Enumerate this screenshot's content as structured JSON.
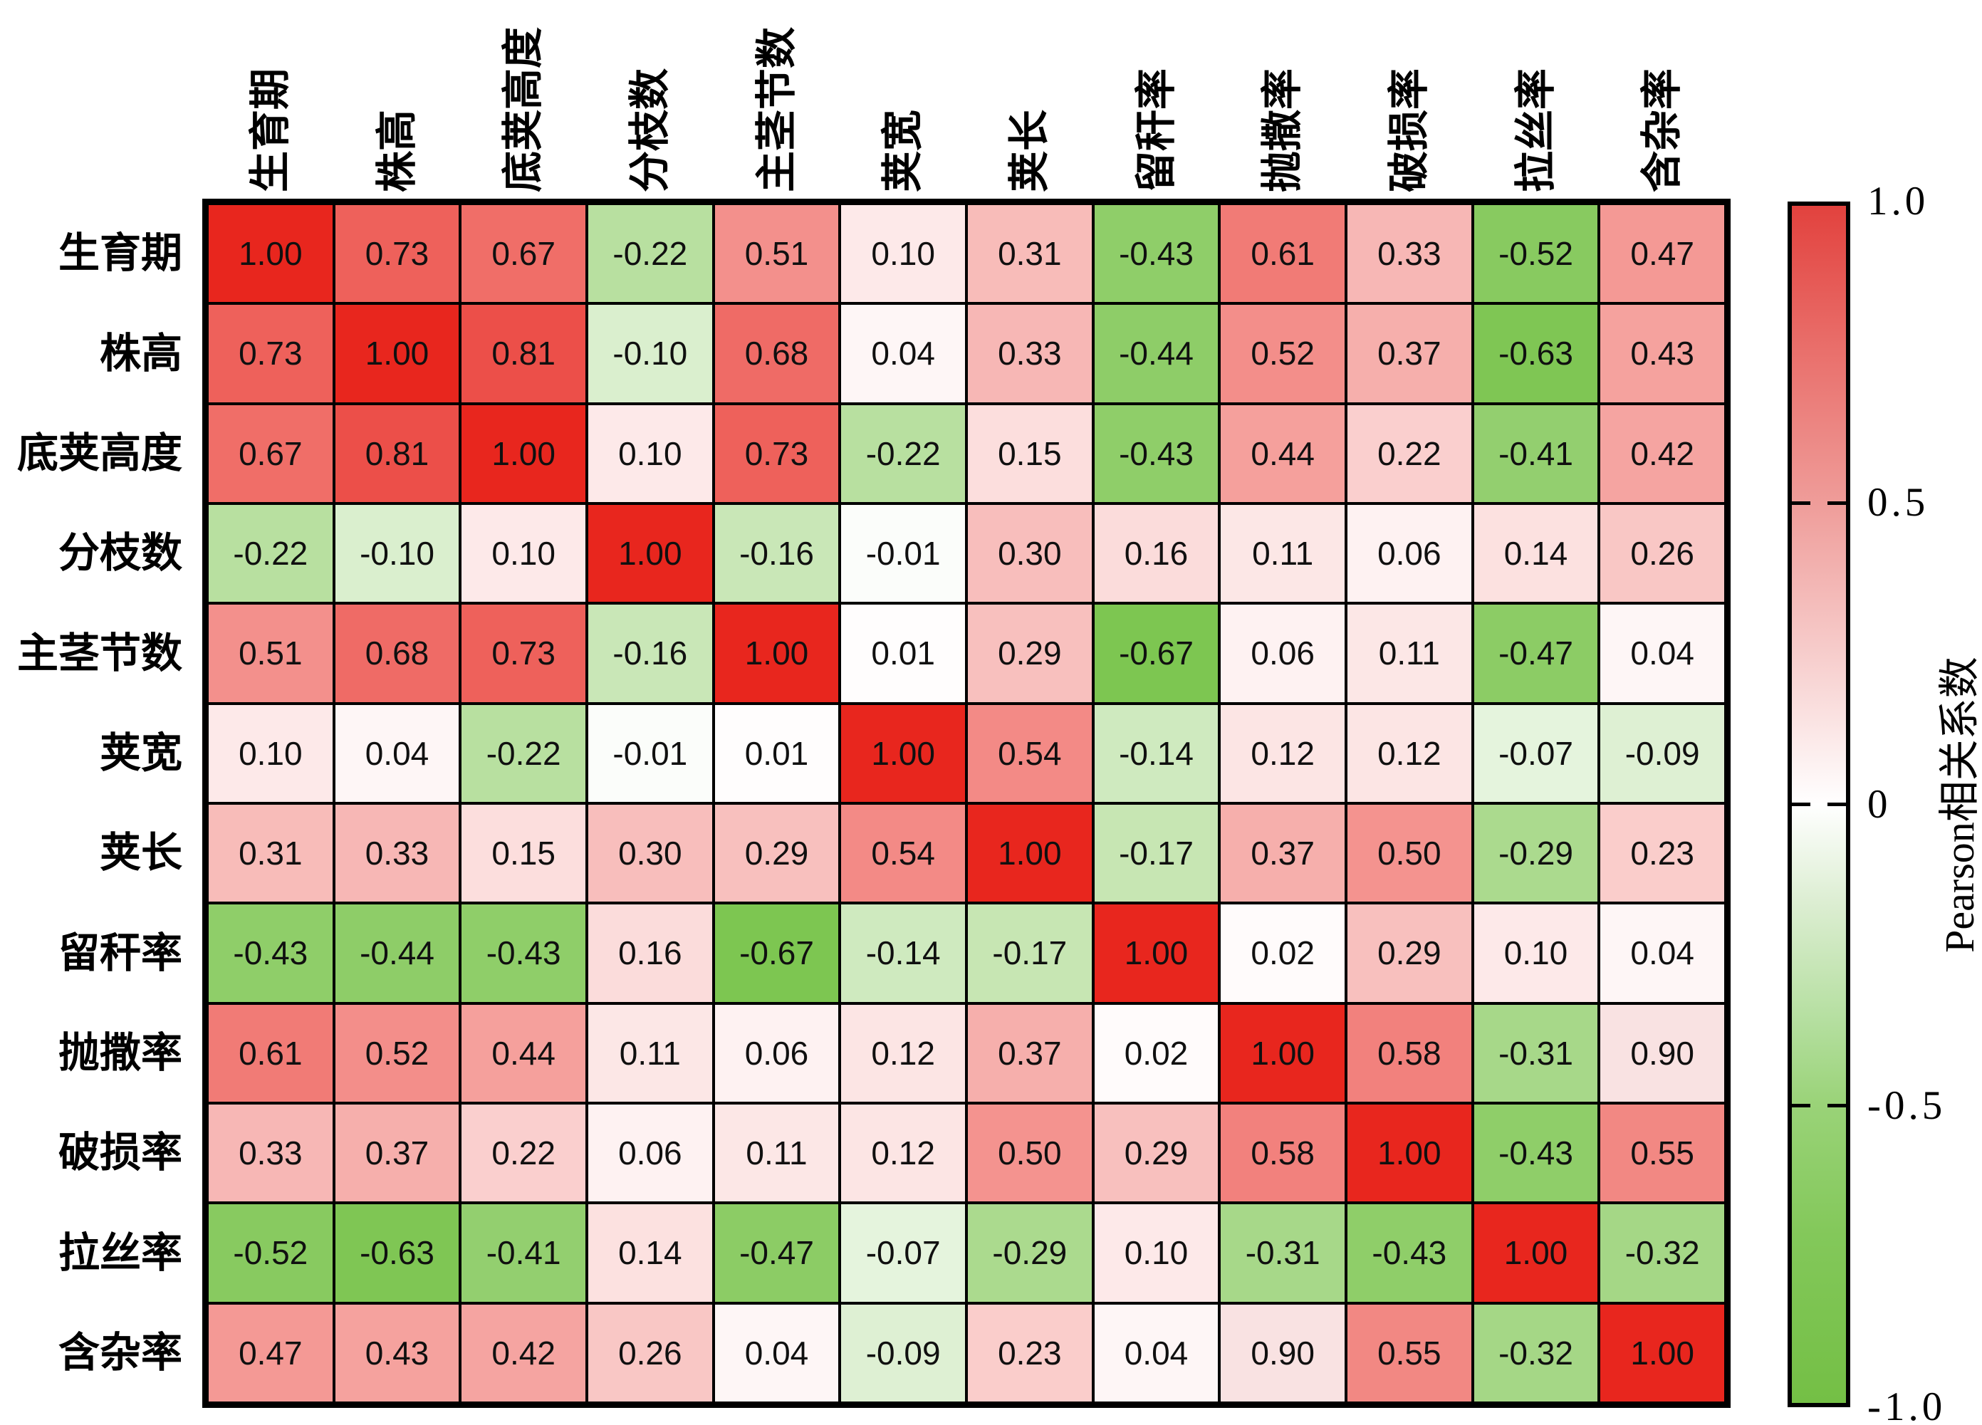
{
  "figure": {
    "background": "#ffffff"
  },
  "chart_data": {
    "type": "heatmap",
    "title": "",
    "variables": [
      "生育期",
      "株高",
      "底荚高度",
      "分枝数",
      "主茎节数",
      "荚宽",
      "荚长",
      "留秆率",
      "抛撒率",
      "破损率",
      "拉丝率",
      "含杂率"
    ],
    "matrix": [
      [
        1.0,
        0.73,
        0.67,
        -0.22,
        0.51,
        0.1,
        0.31,
        -0.43,
        0.61,
        0.33,
        -0.52,
        0.47
      ],
      [
        0.73,
        1.0,
        0.81,
        -0.1,
        0.68,
        0.04,
        0.33,
        -0.44,
        0.52,
        0.37,
        -0.63,
        0.43
      ],
      [
        0.67,
        0.81,
        1.0,
        0.1,
        0.73,
        -0.22,
        0.15,
        -0.43,
        0.44,
        0.22,
        -0.41,
        0.42
      ],
      [
        -0.22,
        -0.1,
        0.1,
        1.0,
        -0.16,
        -0.01,
        0.3,
        0.16,
        0.11,
        0.06,
        0.14,
        0.26
      ],
      [
        0.51,
        0.68,
        0.73,
        -0.16,
        1.0,
        0.01,
        0.29,
        -0.67,
        0.06,
        0.11,
        -0.47,
        0.04
      ],
      [
        0.1,
        0.04,
        -0.22,
        -0.01,
        0.01,
        1.0,
        0.54,
        -0.14,
        0.12,
        0.12,
        -0.07,
        -0.09
      ],
      [
        0.31,
        0.33,
        0.15,
        0.3,
        0.29,
        0.54,
        1.0,
        -0.17,
        0.37,
        0.5,
        -0.29,
        0.23
      ],
      [
        -0.43,
        -0.44,
        -0.43,
        0.16,
        -0.67,
        -0.14,
        -0.17,
        1.0,
        0.02,
        0.29,
        0.1,
        0.04
      ],
      [
        0.61,
        0.52,
        0.44,
        0.11,
        0.06,
        0.12,
        0.37,
        0.02,
        1.0,
        0.58,
        -0.31,
        0.9
      ],
      [
        0.33,
        0.37,
        0.22,
        0.06,
        0.11,
        0.12,
        0.5,
        0.29,
        0.58,
        1.0,
        -0.43,
        0.55
      ],
      [
        -0.52,
        -0.63,
        -0.41,
        0.14,
        -0.47,
        -0.07,
        -0.29,
        0.1,
        -0.31,
        -0.43,
        1.0,
        -0.32
      ],
      [
        0.47,
        0.43,
        0.42,
        0.26,
        0.04,
        -0.09,
        0.23,
        0.04,
        0.9,
        0.55,
        -0.32,
        1.0
      ]
    ],
    "value_format": "0.00",
    "colorbar": {
      "label": "Pearson相关系数",
      "tick_labels": [
        "1.0",
        "0.5",
        "0",
        "-0.5",
        "-1.0"
      ],
      "tick_values": [
        1.0,
        0.5,
        0,
        -0.5,
        -1.0
      ],
      "range": [
        -1,
        1
      ],
      "position": "right",
      "color_positive": "#e8261e",
      "color_zero": "#ffffff",
      "color_negative": "#6cbe3a"
    },
    "color_overrides": [
      {
        "row": 9,
        "col": 12,
        "color": "#f9e2e2"
      },
      {
        "row": 12,
        "col": 9,
        "color": "#f9e2e2"
      }
    ],
    "grid": true,
    "xlabel": "",
    "ylabel": ""
  }
}
